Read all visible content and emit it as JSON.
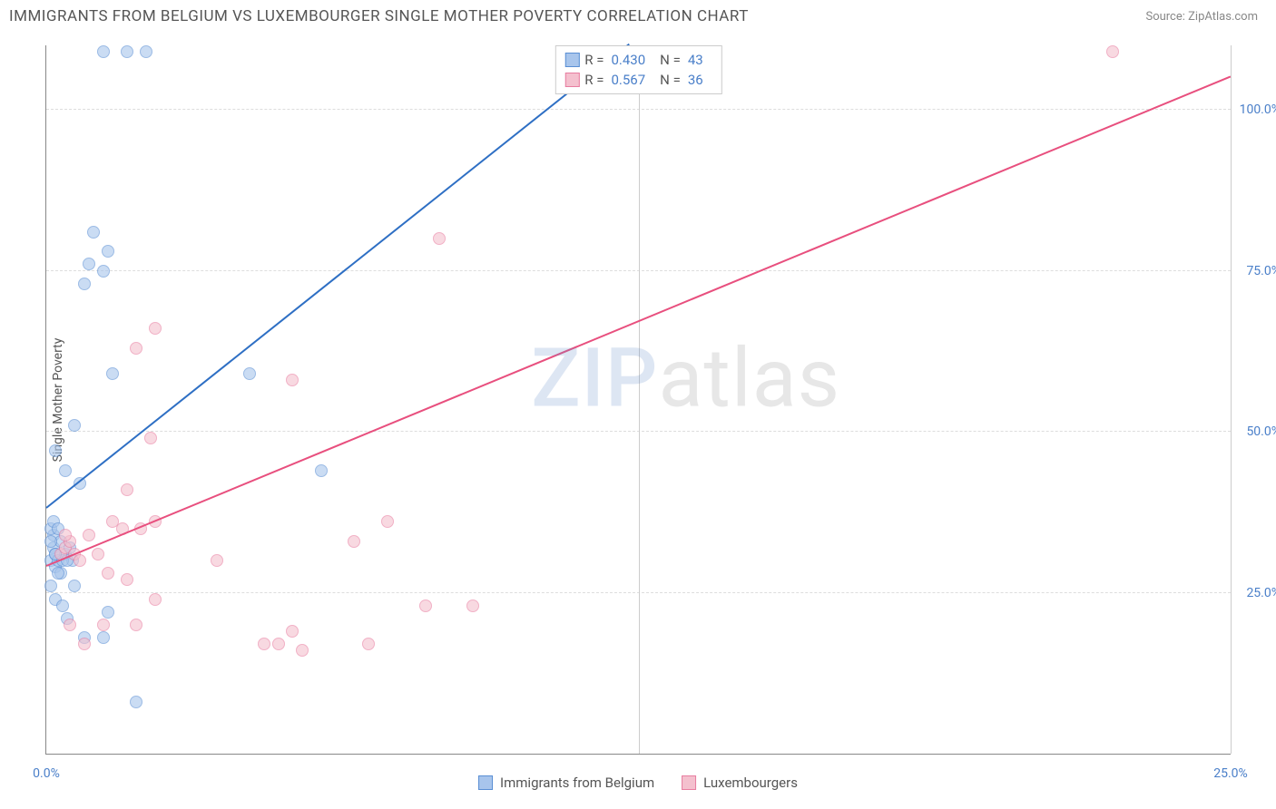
{
  "title": "IMMIGRANTS FROM BELGIUM VS LUXEMBOURGER SINGLE MOTHER POVERTY CORRELATION CHART",
  "source_label": "Source: ZipAtlas.com",
  "y_axis_label": "Single Mother Poverty",
  "watermark": {
    "part1": "ZIP",
    "part2": "atlas"
  },
  "chart": {
    "type": "scatter",
    "background_color": "#ffffff",
    "grid_color": "#dddddd",
    "axis_color": "#888888",
    "tick_label_color": "#4a7fc9",
    "xlim": [
      0,
      25
    ],
    "ylim": [
      0,
      110
    ],
    "x_ticks": [
      {
        "value": 0,
        "label": "0.0%"
      },
      {
        "value": 25,
        "label": "25.0%"
      }
    ],
    "x_grid_values": [
      12.5,
      25
    ],
    "y_ticks": [
      {
        "value": 25,
        "label": "25.0%"
      },
      {
        "value": 50,
        "label": "50.0%"
      },
      {
        "value": 75,
        "label": "75.0%"
      },
      {
        "value": 100,
        "label": "100.0%"
      }
    ],
    "series": [
      {
        "name": "Immigrants from Belgium",
        "fill_color": "#a8c5ec",
        "border_color": "#5a8fd4",
        "line_color": "#2e6fc4",
        "R_label": "R =",
        "R_value": "0.430",
        "N_label": "N =",
        "N_value": "43",
        "trend": {
          "x1": 0,
          "y1": 38,
          "x2": 12.3,
          "y2": 110
        },
        "points": [
          [
            0.1,
            30
          ],
          [
            0.15,
            32
          ],
          [
            0.2,
            31
          ],
          [
            0.2,
            29
          ],
          [
            0.15,
            34
          ],
          [
            0.1,
            35
          ],
          [
            0.3,
            33
          ],
          [
            0.25,
            30
          ],
          [
            0.3,
            28
          ],
          [
            0.4,
            31
          ],
          [
            0.5,
            32
          ],
          [
            0.55,
            30
          ],
          [
            0.1,
            26
          ],
          [
            0.2,
            24
          ],
          [
            0.35,
            23
          ],
          [
            0.45,
            21
          ],
          [
            0.8,
            18
          ],
          [
            1.2,
            18
          ],
          [
            1.3,
            22
          ],
          [
            1.9,
            8
          ],
          [
            0.4,
            44
          ],
          [
            0.2,
            47
          ],
          [
            0.6,
            51
          ],
          [
            0.7,
            42
          ],
          [
            1.4,
            59
          ],
          [
            0.8,
            73
          ],
          [
            0.9,
            76
          ],
          [
            1.2,
            75
          ],
          [
            1.3,
            78
          ],
          [
            1.0,
            81
          ],
          [
            1.2,
            109
          ],
          [
            1.7,
            109
          ],
          [
            2.1,
            109
          ],
          [
            4.3,
            59
          ],
          [
            5.8,
            44
          ],
          [
            0.15,
            36
          ],
          [
            0.25,
            35
          ],
          [
            0.35,
            30
          ],
          [
            0.45,
            30
          ],
          [
            0.25,
            28
          ],
          [
            0.6,
            26
          ],
          [
            0.1,
            33
          ],
          [
            0.2,
            31
          ]
        ]
      },
      {
        "name": "Luxembourgers",
        "fill_color": "#f4c0ce",
        "border_color": "#e87da0",
        "line_color": "#e84f7e",
        "R_label": "R =",
        "R_value": "0.567",
        "N_label": "N =",
        "N_value": "36",
        "trend": {
          "x1": 0,
          "y1": 29,
          "x2": 25,
          "y2": 105
        },
        "points": [
          [
            0.3,
            31
          ],
          [
            0.4,
            32
          ],
          [
            0.6,
            31
          ],
          [
            0.5,
            33
          ],
          [
            0.7,
            30
          ],
          [
            0.9,
            34
          ],
          [
            1.1,
            31
          ],
          [
            1.4,
            36
          ],
          [
            1.6,
            35
          ],
          [
            2.0,
            35
          ],
          [
            2.3,
            36
          ],
          [
            1.3,
            28
          ],
          [
            1.7,
            27
          ],
          [
            3.6,
            30
          ],
          [
            6.5,
            33
          ],
          [
            1.9,
            20
          ],
          [
            1.2,
            20
          ],
          [
            2.3,
            24
          ],
          [
            4.6,
            17
          ],
          [
            4.9,
            17
          ],
          [
            5.2,
            19
          ],
          [
            5.4,
            16
          ],
          [
            6.8,
            17
          ],
          [
            8.0,
            23
          ],
          [
            9.0,
            23
          ],
          [
            1.7,
            41
          ],
          [
            2.2,
            49
          ],
          [
            1.9,
            63
          ],
          [
            2.3,
            66
          ],
          [
            5.2,
            58
          ],
          [
            8.3,
            80
          ],
          [
            7.2,
            36
          ],
          [
            22.5,
            109
          ],
          [
            0.8,
            17
          ],
          [
            0.5,
            20
          ],
          [
            0.4,
            34
          ]
        ]
      }
    ]
  },
  "bottom_legend": [
    {
      "label": "Immigrants from Belgium",
      "fill": "#a8c5ec",
      "border": "#5a8fd4"
    },
    {
      "label": "Luxembourgers",
      "fill": "#f4c0ce",
      "border": "#e87da0"
    }
  ]
}
